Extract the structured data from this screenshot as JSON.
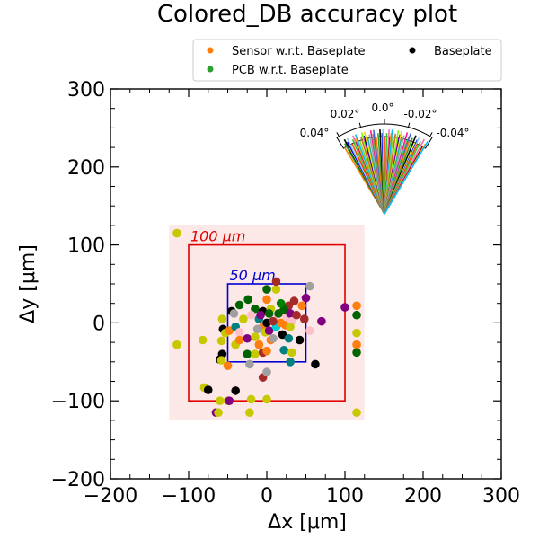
{
  "chart_data": {
    "type": "scatter",
    "title": "Colored_DB accuracy plot",
    "xlabel": "Δx [μm]",
    "ylabel": "Δy [μm]",
    "xlim": [
      -200,
      300
    ],
    "ylim": [
      -200,
      300
    ],
    "xticks": [
      "−200",
      "−100",
      "0",
      "100",
      "200",
      "300"
    ],
    "yticks": [
      "−200",
      "−100",
      "0",
      "100",
      "200",
      "300"
    ],
    "grid": false,
    "legend_position": "top",
    "legend": [
      {
        "name": "Sensor w.r.t. Baseplate",
        "color": "#ff7f0e"
      },
      {
        "name": "PCB w.r.t. Baseplate",
        "color": "#2ca02c"
      },
      {
        "name": "Baseplate",
        "color": "#000000"
      }
    ],
    "tolerance_boxes": [
      {
        "label": "100 μm",
        "half_width": 100,
        "color": "#e00000"
      },
      {
        "label": "50 μm",
        "half_width": 50,
        "color": "#0000d0"
      }
    ],
    "shaded_region": {
      "xmin": -125,
      "xmax": 125,
      "ymin": -125,
      "ymax": 125,
      "color": "#fde8e8"
    },
    "points": [
      {
        "x": -115,
        "y": 115,
        "c": "#c8c800"
      },
      {
        "x": -115,
        "y": -28,
        "c": "#c8c800"
      },
      {
        "x": 115,
        "y": 22,
        "c": "#ff7f0e"
      },
      {
        "x": 115,
        "y": 10,
        "c": "#006400"
      },
      {
        "x": 115,
        "y": -13,
        "c": "#c8c800"
      },
      {
        "x": 115,
        "y": -28,
        "c": "#ff7f0e"
      },
      {
        "x": 115,
        "y": -38,
        "c": "#006400"
      },
      {
        "x": 115,
        "y": -115,
        "c": "#c8c800"
      },
      {
        "x": -82,
        "y": -22,
        "c": "#c8c800"
      },
      {
        "x": -80,
        "y": -83,
        "c": "#c8c800"
      },
      {
        "x": -75,
        "y": -86,
        "c": "#000000"
      },
      {
        "x": -65,
        "y": -115,
        "c": "#800080"
      },
      {
        "x": -62,
        "y": -115,
        "c": "#c8c800"
      },
      {
        "x": -60,
        "y": -100,
        "c": "#c8c800"
      },
      {
        "x": -50,
        "y": -100,
        "c": "#c8c800"
      },
      {
        "x": -48,
        "y": -100,
        "c": "#800080"
      },
      {
        "x": -40,
        "y": -87,
        "c": "#000000"
      },
      {
        "x": -20,
        "y": -98,
        "c": "#c8c800"
      },
      {
        "x": 0,
        "y": -98,
        "c": "#c8c800"
      },
      {
        "x": -22,
        "y": -115,
        "c": "#c8c800"
      },
      {
        "x": -5,
        "y": -70,
        "c": "#a52a2a"
      },
      {
        "x": 0,
        "y": -63,
        "c": "#a0a0a0"
      },
      {
        "x": -60,
        "y": -47,
        "c": "#000000"
      },
      {
        "x": -57,
        "y": -40,
        "c": "#000000"
      },
      {
        "x": -58,
        "y": -48,
        "c": "#c8c800"
      },
      {
        "x": -50,
        "y": -55,
        "c": "#ff7f0e"
      },
      {
        "x": -58,
        "y": -23,
        "c": "#c8c800"
      },
      {
        "x": -56,
        "y": -8,
        "c": "#000000"
      },
      {
        "x": -53,
        "y": -13,
        "c": "#c8c800"
      },
      {
        "x": -48,
        "y": -10,
        "c": "#ff7f0e"
      },
      {
        "x": -57,
        "y": 5,
        "c": "#c8c800"
      },
      {
        "x": -45,
        "y": 15,
        "c": "#000000"
      },
      {
        "x": -35,
        "y": 23,
        "c": "#006400"
      },
      {
        "x": -42,
        "y": 12,
        "c": "#a0a0a0"
      },
      {
        "x": -40,
        "y": -5,
        "c": "#008080"
      },
      {
        "x": -35,
        "y": -12,
        "c": "#ffc0cb"
      },
      {
        "x": -40,
        "y": -28,
        "c": "#c8c800"
      },
      {
        "x": -35,
        "y": -22,
        "c": "#ff7f0e"
      },
      {
        "x": -25,
        "y": -20,
        "c": "#800080"
      },
      {
        "x": -22,
        "y": -53,
        "c": "#a0a0a0"
      },
      {
        "x": -25,
        "y": -40,
        "c": "#006400"
      },
      {
        "x": -15,
        "y": -40,
        "c": "#c8c800"
      },
      {
        "x": -10,
        "y": -28,
        "c": "#ff7f0e"
      },
      {
        "x": -5,
        "y": -38,
        "c": "#a52a2a"
      },
      {
        "x": 0,
        "y": -36,
        "c": "#ff7f0e"
      },
      {
        "x": -24,
        "y": 30,
        "c": "#006400"
      },
      {
        "x": -15,
        "y": 18,
        "c": "#006400"
      },
      {
        "x": -20,
        "y": 10,
        "c": "#ffc0cb"
      },
      {
        "x": -10,
        "y": 5,
        "c": "#008080"
      },
      {
        "x": -5,
        "y": -5,
        "c": "#ff7f0e"
      },
      {
        "x": -2,
        "y": -12,
        "c": "#c8c800"
      },
      {
        "x": 0,
        "y": 0,
        "c": "#000000"
      },
      {
        "x": 3,
        "y": -10,
        "c": "#800080"
      },
      {
        "x": 5,
        "y": -22,
        "c": "#ff7f0e"
      },
      {
        "x": 8,
        "y": -20,
        "c": "#a0a0a0"
      },
      {
        "x": 10,
        "y": 5,
        "c": "#ffc0cb"
      },
      {
        "x": 12,
        "y": -5,
        "c": "#00ced1"
      },
      {
        "x": 15,
        "y": 12,
        "c": "#006400"
      },
      {
        "x": 18,
        "y": 0,
        "c": "#ff7f0e"
      },
      {
        "x": 20,
        "y": -15,
        "c": "#000000"
      },
      {
        "x": 24,
        "y": -3,
        "c": "#ff7f0e"
      },
      {
        "x": 25,
        "y": 8,
        "c": "#ffc0cb"
      },
      {
        "x": 28,
        "y": 22,
        "c": "#a52a2a"
      },
      {
        "x": 22,
        "y": 17,
        "c": "#006400"
      },
      {
        "x": 30,
        "y": 12,
        "c": "#800080"
      },
      {
        "x": 32,
        "y": 2,
        "c": "#ffc0cb"
      },
      {
        "x": 35,
        "y": 28,
        "c": "#a52a2a"
      },
      {
        "x": 38,
        "y": 10,
        "c": "#a52a2a"
      },
      {
        "x": 30,
        "y": -5,
        "c": "#c8c800"
      },
      {
        "x": 28,
        "y": -20,
        "c": "#008080"
      },
      {
        "x": 22,
        "y": -35,
        "c": "#008080"
      },
      {
        "x": 32,
        "y": -38,
        "c": "#c8c800"
      },
      {
        "x": 30,
        "y": -50,
        "c": "#008080"
      },
      {
        "x": 42,
        "y": -22,
        "c": "#000000"
      },
      {
        "x": 45,
        "y": 22,
        "c": "#ff7f0e"
      },
      {
        "x": 48,
        "y": 5,
        "c": "#a52a2a"
      },
      {
        "x": 50,
        "y": 32,
        "c": "#800080"
      },
      {
        "x": 55,
        "y": 47,
        "c": "#a0a0a0"
      },
      {
        "x": 55,
        "y": -10,
        "c": "#ffc0cb"
      },
      {
        "x": 62,
        "y": -53,
        "c": "#000000"
      },
      {
        "x": 70,
        "y": 2,
        "c": "#800080"
      },
      {
        "x": 100,
        "y": 20,
        "c": "#800080"
      },
      {
        "x": 0,
        "y": 43,
        "c": "#006400"
      },
      {
        "x": 12,
        "y": 43,
        "c": "#c8c800"
      },
      {
        "x": 12,
        "y": 53,
        "c": "#a52a2a"
      },
      {
        "x": -5,
        "y": 15,
        "c": "#000000"
      },
      {
        "x": 5,
        "y": 18,
        "c": "#c8c800"
      },
      {
        "x": -12,
        "y": -8,
        "c": "#a0a0a0"
      },
      {
        "x": -8,
        "y": 10,
        "c": "#800080"
      },
      {
        "x": 18,
        "y": 25,
        "c": "#008000"
      },
      {
        "x": 0,
        "y": 30,
        "c": "#ff7f0e"
      },
      {
        "x": -30,
        "y": 5,
        "c": "#c8c800"
      },
      {
        "x": 3,
        "y": 12,
        "c": "#006400"
      },
      {
        "x": 8,
        "y": 2,
        "c": "#a52a2a"
      },
      {
        "x": -15,
        "y": -18,
        "c": "#c8c800"
      }
    ],
    "inset": {
      "type": "angular_fan",
      "tick_labels": [
        "0.04°",
        "0.02°",
        "0.0°",
        "-0.02°",
        "-0.04°"
      ],
      "ray_colors": [
        "#ff7f0e",
        "#2ca02c",
        "#000000",
        "#ffff00",
        "#0000ff",
        "#87ceeb",
        "#ff4500",
        "#32cd32",
        "#ff69b4",
        "#8b0000",
        "#ffa500",
        "#00bfff",
        "#9acd32",
        "#d2691e",
        "#7cfc00",
        "#ff00ff",
        "#00008b",
        "#ffd700",
        "#20b2aa",
        "#a0a0a0",
        "#ff1493",
        "#00ff7f",
        "#b8860b",
        "#4169e1"
      ]
    }
  }
}
